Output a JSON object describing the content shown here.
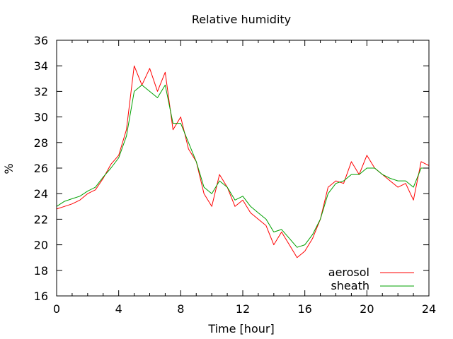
{
  "chart_data": {
    "type": "line",
    "title": "Relative humidity",
    "xlabel": "Time [hour]",
    "ylabel": "%",
    "xlim": [
      0,
      24
    ],
    "ylim": [
      16,
      36
    ],
    "xticks": [
      0,
      4,
      8,
      12,
      16,
      20,
      24
    ],
    "yticks": [
      16,
      18,
      20,
      22,
      24,
      26,
      28,
      30,
      32,
      34,
      36
    ],
    "grid": false,
    "legend_position": "bottom-right",
    "x": [
      0,
      0.5,
      1,
      1.5,
      2,
      2.5,
      3,
      3.5,
      4,
      4.5,
      5,
      5.5,
      6,
      6.5,
      7,
      7.5,
      8,
      8.5,
      9,
      9.5,
      10,
      10.5,
      11,
      11.5,
      12,
      12.5,
      13,
      13.5,
      14,
      14.5,
      15,
      15.5,
      16,
      16.5,
      17,
      17.5,
      18,
      18.5,
      19,
      19.5,
      20,
      20.5,
      21,
      21.5,
      22,
      22.5,
      23,
      23.5,
      24
    ],
    "series": [
      {
        "name": "aerosol",
        "color": "#ff0000",
        "values": [
          22.8,
          23.0,
          23.2,
          23.5,
          24.0,
          24.3,
          25.2,
          26.3,
          27.0,
          29.0,
          34.0,
          32.5,
          33.8,
          32.0,
          33.5,
          29.0,
          30.0,
          27.5,
          26.5,
          24.0,
          23.0,
          25.5,
          24.5,
          23.0,
          23.5,
          22.5,
          22.0,
          21.5,
          20.0,
          21.0,
          20.0,
          19.0,
          19.5,
          20.5,
          22.0,
          24.5,
          25.0,
          24.8,
          26.5,
          25.5,
          27.0,
          26.0,
          25.5,
          25.0,
          24.5,
          24.8,
          23.5,
          26.5,
          26.2
        ]
      },
      {
        "name": "sheath",
        "color": "#00a000",
        "values": [
          23.0,
          23.4,
          23.6,
          23.8,
          24.2,
          24.5,
          25.3,
          26.0,
          26.8,
          28.5,
          32.0,
          32.5,
          32.0,
          31.5,
          32.5,
          29.5,
          29.5,
          28.0,
          26.5,
          24.5,
          24.0,
          25.0,
          24.5,
          23.5,
          23.8,
          23.0,
          22.5,
          22.0,
          21.0,
          21.2,
          20.5,
          19.8,
          20.0,
          20.8,
          22.0,
          24.0,
          24.8,
          25.0,
          25.5,
          25.5,
          26.0,
          26.0,
          25.5,
          25.2,
          25.0,
          25.0,
          24.5,
          26.0,
          26.0
        ]
      }
    ]
  }
}
